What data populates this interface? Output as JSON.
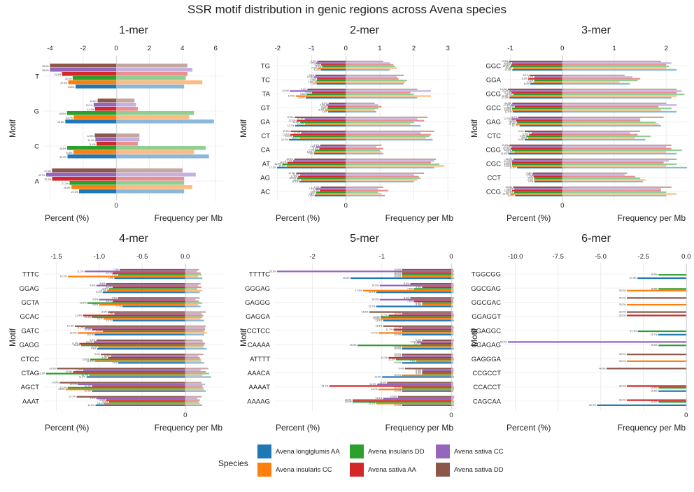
{
  "title": "SSR motif distribution in genic regions across Avena species",
  "legend": {
    "title": "Species",
    "placement": "bottom"
  },
  "species": [
    {
      "name": "Avena longiglumis AA",
      "color": "#1f77b4"
    },
    {
      "name": "Avena insularis CC",
      "color": "#ff7f0e"
    },
    {
      "name": "Avena insularis DD",
      "color": "#2ca02c"
    },
    {
      "name": "Avena sativa AA",
      "color": "#d62728"
    },
    {
      "name": "Avena sativa CC",
      "color": "#9467bd"
    },
    {
      "name": "Avena sativa DD",
      "color": "#8c564b"
    }
  ],
  "axis_labels": {
    "ylabel": "Motif",
    "left_label": "Percent (%)",
    "right_label": "Frequency per Mb"
  },
  "chart_data": [
    {
      "type": "bar",
      "title": "1-mer",
      "xticks": [
        -4,
        -2,
        0,
        2,
        4,
        6
      ],
      "xlim": [
        -4.4,
        6.5
      ],
      "categories": [
        "T",
        "G",
        "C",
        "A"
      ],
      "percent": [
        [
          23.6,
          27.9,
          25.3,
          31.5,
          38.5,
          38.5
        ],
        [
          29.6,
          24.7,
          28.6,
          12.4,
          13.1,
          10.8
        ],
        [
          28.3,
          24.8,
          28.5,
          11.4,
          12.1,
          12.5
        ],
        [
          21.6,
          26.0,
          27.1,
          37.2,
          40.7,
          37.3
        ]
      ],
      "frequency": [
        [
          4.1,
          5.2,
          4.2,
          4.3,
          4.6,
          4.3
        ],
        [
          5.9,
          4.4,
          4.7,
          1.3,
          1.2,
          1.1
        ],
        [
          5.6,
          4.7,
          5.4,
          1.3,
          1.4,
          1.4
        ],
        [
          4.1,
          4.6,
          4.1,
          4.1,
          4.8,
          4.0
        ]
      ]
    },
    {
      "type": "bar",
      "title": "2-mer",
      "xticks": [
        -2,
        -1,
        0,
        1,
        2,
        3
      ],
      "xlim": [
        -2.1,
        3.2
      ],
      "categories": [
        "TG",
        "TC",
        "TA",
        "GT",
        "GA",
        "CT",
        "CA",
        "AT",
        "AG",
        "AC"
      ],
      "percent": [
        [
          6.3,
          7.0,
          5.9,
          6.2,
          7.5,
          7.1
        ],
        [
          7.3,
          7.8,
          7.3,
          7.2,
          8.0,
          7.6
        ],
        [
          10.0,
          12.5,
          9.8,
          8.5,
          14.0,
          9.6
        ],
        [
          4.4,
          5.2,
          4.6,
          4.5,
          4.9,
          4.3
        ],
        [
          12.7,
          10.2,
          11.4,
          12.3,
          10.3,
          12.8
        ],
        [
          14.2,
          11.6,
          13.2,
          13.9,
          11.2,
          13.8
        ],
        [
          7.9,
          8.1,
          7.7,
          6.6,
          7.4,
          6.4
        ],
        [
          17.2,
          14.8,
          15.9,
          14.6,
          13.2,
          12.9
        ],
        [
          11.6,
          11.2,
          12.2,
          11.9,
          11.4,
          12.4
        ],
        [
          7.8,
          7.6,
          7.4,
          6.5,
          7.6,
          6.3
        ]
      ],
      "frequency": [
        [
          1.3,
          1.5,
          1.45,
          1.4,
          1.3,
          1.1
        ],
        [
          1.7,
          1.75,
          1.8,
          1.55,
          1.5,
          1.7
        ],
        [
          2.1,
          2.5,
          2.0,
          1.9,
          2.5,
          2.1
        ],
        [
          0.9,
          0.85,
          0.95,
          1.05,
          0.95,
          0.85
        ],
        [
          2.2,
          1.9,
          2.0,
          2.3,
          2.1,
          2.4
        ],
        [
          2.55,
          2.35,
          2.45,
          2.5,
          2.2,
          2.6
        ],
        [
          1.1,
          1.05,
          1.0,
          1.1,
          0.9,
          1.05
        ],
        [
          2.6,
          2.9,
          2.75,
          2.5,
          2.6,
          2.65
        ],
        [
          2.0,
          2.1,
          2.2,
          2.15,
          2.0,
          2.3
        ],
        [
          1.15,
          1.05,
          0.95,
          1.25,
          0.95,
          1.1
        ]
      ]
    },
    {
      "type": "bar",
      "title": "3-mer",
      "xticks": [
        -1,
        0,
        1,
        2
      ],
      "xlim": [
        -1.1,
        2.4
      ],
      "categories": [
        "GGC",
        "GGA",
        "GCG",
        "GCC",
        "GAG",
        "CTC",
        "CGG",
        "CGC",
        "CCT",
        "CCG"
      ],
      "percent": [
        [
          12.5,
          12.3,
          13.0,
          12.8,
          12.6,
          13.3
        ],
        [
          8.0,
          7.2,
          7.0,
          8.5,
          7.0,
          8.2
        ],
        [
          13.2,
          13.2,
          12.2,
          12.7,
          13.2,
          13.6
        ],
        [
          12.4,
          12.6,
          12.6,
          11.9,
          12.8,
          12.5
        ],
        [
          10.7,
          11.5,
          11.3,
          11.6,
          12.7,
          11.0
        ],
        [
          9.4,
          8.6,
          9.0,
          8.3,
          7.7,
          9.4
        ],
        [
          13.5,
          12.0,
          12.6,
          12.9,
          12.7,
          13.2
        ],
        [
          11.3,
          12.6,
          12.6,
          12.6,
          12.7,
          12.2
        ],
        [
          7.0,
          7.1,
          7.0,
          7.2,
          7.6,
          7.4
        ],
        [
          11.8,
          13.0,
          12.1,
          12.6,
          12.0,
          12.3
        ]
      ],
      "frequency": [
        [
          2.2,
          2.0,
          2.05,
          2.0,
          2.1,
          1.9
        ],
        [
          1.3,
          1.1,
          1.45,
          1.5,
          1.35,
          1.2
        ],
        [
          2.1,
          2.2,
          2.35,
          2.2,
          2.3,
          2.2
        ],
        [
          2.2,
          1.9,
          2.1,
          1.85,
          2.2,
          2.0
        ],
        [
          1.9,
          1.85,
          1.8,
          1.5,
          1.5,
          1.95
        ],
        [
          1.6,
          1.4,
          1.7,
          1.45,
          1.3,
          1.5
        ],
        [
          2.2,
          2.0,
          2.3,
          2.1,
          2.0,
          2.1
        ],
        [
          2.4,
          2.0,
          2.2,
          1.95,
          2.05,
          2.2
        ],
        [
          1.55,
          1.6,
          1.5,
          1.4,
          1.2,
          1.25
        ],
        [
          2.0,
          2.2,
          2.0,
          1.9,
          1.9,
          2.1
        ]
      ]
    },
    {
      "type": "bar",
      "title": "4-mer",
      "xticks": [
        -1.5,
        -1.0,
        -0.5,
        0.0
      ],
      "xtick_labels": [
        "-1.5",
        "-1.0",
        "-0.5",
        "0.0"
      ],
      "xlim": [
        -1.65,
        0.45
      ],
      "categories": [
        "TTTC",
        "GGAG",
        "GCTA",
        "GCAC",
        "GATC",
        "GAGG",
        "CTCC",
        "CTAG",
        "AGCT",
        "AAAT"
      ],
      "percent": [
        [
          7.9,
          13.1,
          7.5,
          8.1,
          11.2,
          7.3
        ],
        [
          9.2,
          8.7,
          8.5,
          8.1,
          9.9,
          8.8
        ],
        [
          7.0,
          9.6,
          10.9,
          8.1,
          9.6,
          7.5
        ],
        [
          8.1,
          9.1,
          10.4,
          11.4,
          7.9,
          8.6
        ],
        [
          10.1,
          12.0,
          9.2,
          10.4,
          11.2,
          12.3
        ],
        [
          9.8,
          9.7,
          11.6,
          11.8,
          10.2,
          9.9
        ],
        [
          7.5,
          10.1,
          10.6,
          8.6,
          8.3,
          9.4
        ],
        [
          11.0,
          10.7,
          15.5,
          12.5,
          11.4,
          14.3
        ],
        [
          10.4,
          13.3,
          13.1,
          10.4,
          12.0,
          14.0
        ],
        [
          10.0,
          9.1,
          8.5,
          8.8,
          9.9,
          12.1
        ]
      ],
      "frequency": [
        [
          0.2,
          0.15,
          0.19,
          0.18,
          0.14,
          0.16
        ],
        [
          0.17,
          0.2,
          0.14,
          0.19,
          0.15,
          0.18
        ],
        [
          0.18,
          0.15,
          0.2,
          0.16,
          0.12,
          0.17
        ],
        [
          0.22,
          0.18,
          0.2,
          0.21,
          0.19,
          0.24
        ],
        [
          0.22,
          0.25,
          0.22,
          0.23,
          0.23,
          0.24
        ],
        [
          0.25,
          0.21,
          0.22,
          0.23,
          0.21,
          0.2
        ],
        [
          0.22,
          0.19,
          0.18,
          0.17,
          0.15,
          0.21
        ],
        [
          0.3,
          0.2,
          0.28,
          0.24,
          0.18,
          0.27
        ],
        [
          0.24,
          0.22,
          0.21,
          0.2,
          0.23,
          0.19
        ],
        [
          0.2,
          0.17,
          0.16,
          0.17,
          0.14,
          0.19
        ]
      ]
    },
    {
      "type": "bar",
      "title": "5-mer",
      "xticks": [
        -2,
        -1,
        0
      ],
      "xlim": [
        -2.55,
        0.05
      ],
      "categories": [
        "TTTTC",
        "GGGAG",
        "GAGGG",
        "GAGGA",
        "CCTCC",
        "CAAAA",
        "ATTTT",
        "AAACA",
        "AAAAT",
        "AAAAG"
      ],
      "percent": [
        [
          20.4,
          10.0,
          10.0,
          10.0,
          35.3,
          10.0
        ],
        [
          15.2,
          17.9,
          7.6,
          5.9,
          14.5,
          8.3
        ],
        [
          15.2,
          5.9,
          5.9,
          7.6,
          14.5,
          8.3
        ],
        [
          13.8,
          14.3,
          14.3,
          12.7,
          10.0,
          16.6
        ],
        [
          10.0,
          14.7,
          10.0,
          11.7,
          10.0,
          13.8
        ],
        [
          10.0,
          10.0,
          19.0,
          6.2,
          7.0,
          5.9
        ],
        [
          10.0,
          7.1,
          11.2,
          12.7,
          10.0,
          10.0
        ],
        [
          14.0,
          10.0,
          5.9,
          5.9,
          5.9,
          9.4
        ],
        [
          10.0,
          14.7,
          10.0,
          24.7,
          15.0,
          13.0
        ],
        [
          10.0,
          15.2,
          20.0,
          20.0,
          13.8,
          10.8
        ]
      ],
      "frequency": [
        [
          0.04,
          0.03,
          0.04,
          0.03,
          0.04,
          0.03
        ],
        [
          0.03,
          0.04,
          0.03,
          0.03,
          0.04,
          0.03
        ],
        [
          0.03,
          0.02,
          0.03,
          0.03,
          0.03,
          0.04
        ],
        [
          0.04,
          0.03,
          0.03,
          0.04,
          0.03,
          0.03
        ],
        [
          0.03,
          0.04,
          0.03,
          0.03,
          0.04,
          0.03
        ],
        [
          0.04,
          0.03,
          0.03,
          0.03,
          0.03,
          0.04
        ],
        [
          0.03,
          0.03,
          0.04,
          0.03,
          0.03,
          0.03
        ],
        [
          0.04,
          0.03,
          0.03,
          0.03,
          0.04,
          0.03
        ],
        [
          0.03,
          0.04,
          0.04,
          0.03,
          0.03,
          0.03
        ],
        [
          0.04,
          0.03,
          0.04,
          0.03,
          0.04,
          0.04
        ]
      ]
    },
    {
      "type": "bar",
      "title": "6-mer",
      "xticks": [
        -10.0,
        -7.5,
        -5.0,
        -2.5,
        0.0
      ],
      "xtick_labels": [
        "-10.0",
        "-7.5",
        "-5.0",
        "-2.5",
        "0.0"
      ],
      "xlim": [
        -10.6,
        0.05
      ],
      "categories": [
        "TGGCGG",
        "GGCGAG",
        "GGCGAC",
        "GGAGGT",
        "GGAGGC",
        "GGAGAG",
        "GAGGGA",
        "CCGCCT",
        "CCACCT",
        "CAGCAA"
      ],
      "percent": [
        [
          27.3,
          null,
          15.5,
          null,
          null,
          null
        ],
        [
          null,
          33.3,
          15.5,
          null,
          null,
          null
        ],
        [
          null,
          33.3,
          null,
          null,
          null,
          33.3
        ],
        [
          null,
          null,
          null,
          33.3,
          null,
          33.3
        ],
        [
          15.7,
          null,
          27.1,
          null,
          null,
          null
        ],
        [
          null,
          null,
          15.5,
          null,
          99.9,
          null
        ],
        [
          null,
          33.3,
          null,
          null,
          null,
          33.3
        ],
        [
          null,
          null,
          null,
          null,
          null,
          44.6
        ],
        [
          15.5,
          null,
          15.5,
          33.3,
          null,
          null
        ],
        [
          50.0,
          null,
          15.5,
          33.3,
          null,
          null
        ]
      ],
      "frequency": [
        [
          null,
          null,
          null,
          null,
          null,
          null
        ],
        [
          null,
          null,
          null,
          null,
          null,
          null
        ],
        [
          null,
          null,
          null,
          null,
          null,
          null
        ],
        [
          null,
          null,
          null,
          null,
          null,
          null
        ],
        [
          null,
          null,
          null,
          null,
          null,
          null
        ],
        [
          null,
          null,
          null,
          null,
          null,
          null
        ],
        [
          null,
          null,
          null,
          null,
          null,
          null
        ],
        [
          null,
          null,
          null,
          null,
          null,
          null
        ],
        [
          null,
          null,
          null,
          null,
          null,
          null
        ],
        [
          null,
          null,
          null,
          null,
          null,
          null
        ]
      ]
    }
  ]
}
